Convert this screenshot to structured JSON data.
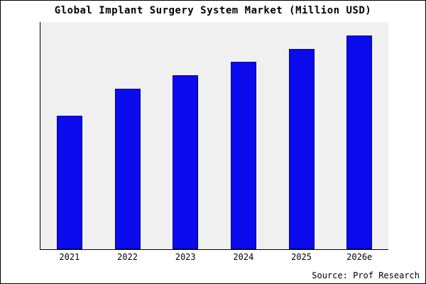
{
  "title": "Global Implant Surgery System Market (Million USD)",
  "source_text": "Source: Prof Research",
  "colors": {
    "bar_fill": "#0b0bee",
    "bar_border": "#00008b",
    "plot_background": "#f0f0f0",
    "axis": "#000000",
    "frame_border": "#000000"
  },
  "chart_data": {
    "type": "bar",
    "title": "Global Implant Surgery System Market (Million USD)",
    "categories": [
      "2021",
      "2022",
      "2023",
      "2024",
      "2025",
      "2026e"
    ],
    "values": [
      100,
      120,
      130,
      140,
      150,
      160
    ],
    "xlabel": "",
    "ylabel": "",
    "ylim": [
      0,
      170
    ],
    "grid": false,
    "legend_position": "none",
    "annotations": [
      "Source: Prof Research"
    ]
  }
}
